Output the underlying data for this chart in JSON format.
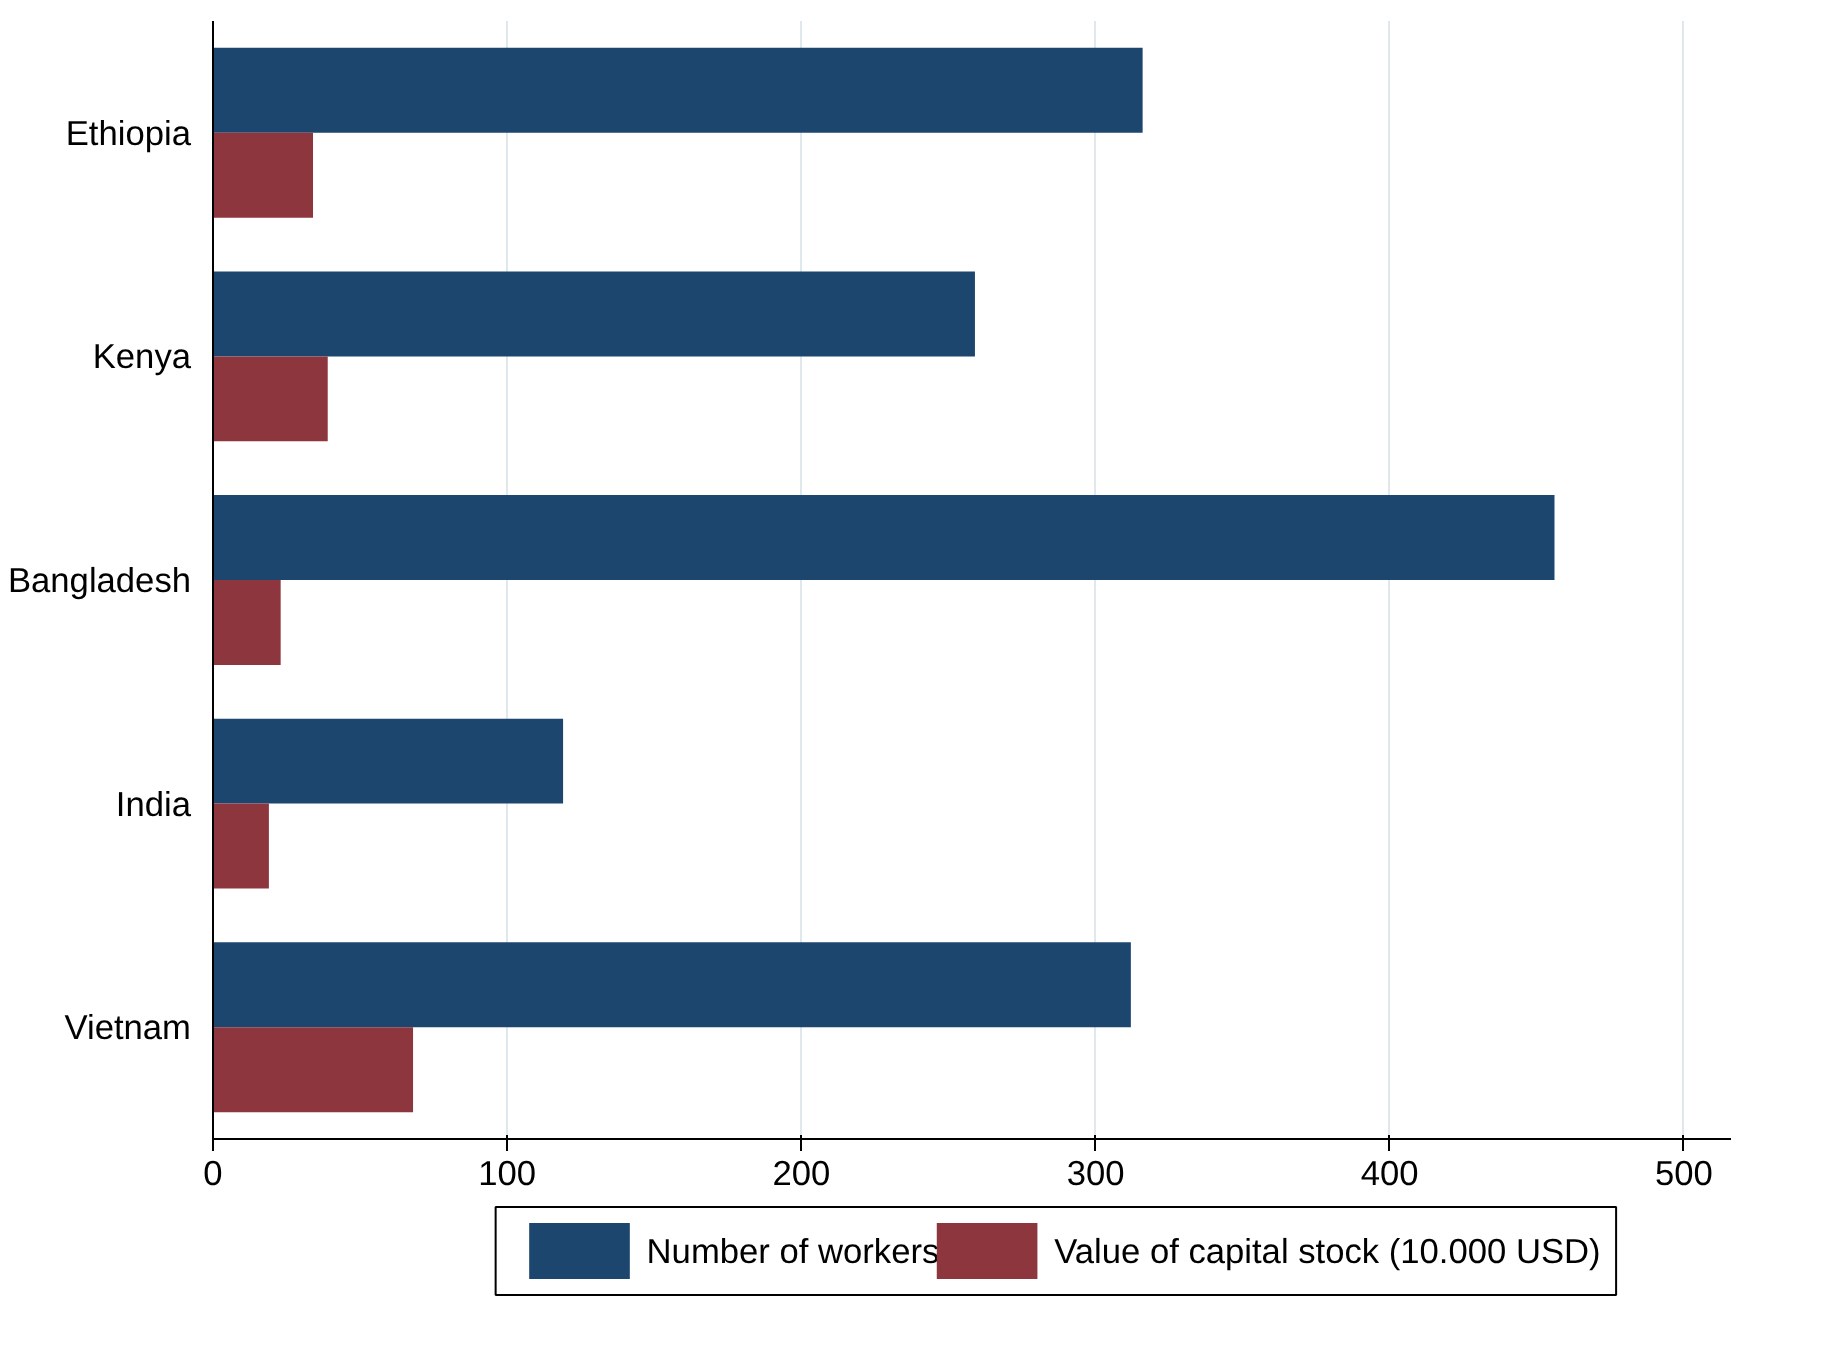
{
  "chart_data": {
    "type": "bar",
    "orientation": "horizontal",
    "categories": [
      "Ethiopia",
      "Kenya",
      "Bangladesh",
      "India",
      "Vietnam"
    ],
    "series": [
      {
        "name": "Number of workers",
        "color": "#1c466d",
        "values": [
          316,
          259,
          456,
          119,
          312
        ]
      },
      {
        "name": "Value of capital stock (10.000 USD)",
        "color": "#8e363e",
        "values": [
          34,
          39,
          23,
          19,
          68
        ]
      }
    ],
    "xlim": [
      0,
      516
    ],
    "xticks": [
      0,
      100,
      200,
      300,
      400,
      500
    ],
    "grid": "x",
    "legend": "bottom"
  }
}
